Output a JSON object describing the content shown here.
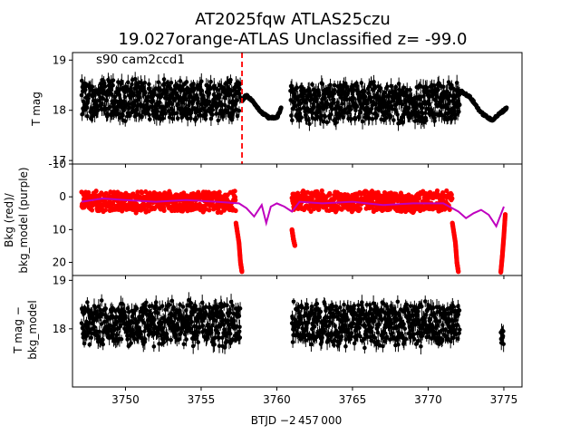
{
  "title_line1": "AT2025fqw  ATLAS25czu",
  "title_line2": "19.027orange-ATLAS Unclassified z= -99.0",
  "xlabel": "BTJD −2 457 000",
  "annotation": "s90 cam2ccd1",
  "chart_data": [
    {
      "type": "scatter",
      "ylabel": "T mag",
      "xlim": [
        3746.5,
        3776.2
      ],
      "ylim": [
        19.15,
        16.93
      ],
      "y_inverted": true,
      "yticks": [
        17,
        18,
        19
      ],
      "series_color": "#000000",
      "vline": {
        "x": 3757.7,
        "color": "#ff0000",
        "style": "dashed"
      },
      "segments": [
        {
          "x_start": 3747.1,
          "x_end": 3757.6,
          "y_center": 18.2,
          "y_spread": 0.45,
          "style": "noisy"
        },
        {
          "x": [
            3757.7,
            3758.0,
            3758.5,
            3759.0,
            3759.5,
            3760.0,
            3760.3
          ],
          "y": [
            18.2,
            18.3,
            18.15,
            17.95,
            17.85,
            17.85,
            18.05
          ],
          "style": "smooth"
        },
        {
          "x_start": 3760.9,
          "x_end": 3772.1,
          "y_center": 18.15,
          "y_spread": 0.45,
          "style": "noisy"
        },
        {
          "x": [
            3772.1,
            3772.8,
            3773.5,
            3774.2,
            3774.8,
            3775.2
          ],
          "y": [
            18.4,
            18.25,
            17.95,
            17.8,
            17.95,
            18.05
          ],
          "style": "smooth"
        }
      ]
    },
    {
      "type": "scatter",
      "ylabel_line1": "Bkg (red)/",
      "ylabel_line2": "bkg_model (purple)",
      "xlim": [
        3746.5,
        3776.2
      ],
      "ylim": [
        -10,
        24
      ],
      "yticks": [
        -10,
        0,
        10,
        20
      ],
      "bkg_color": "#ff0000",
      "model_color": "#bf00bf",
      "bkg_segments": [
        {
          "x_start": 3747.1,
          "x_end": 3757.3,
          "y_center": 1.5,
          "y_spread": 3.5
        },
        {
          "x": [
            3757.3,
            3757.5,
            3757.6,
            3757.7
          ],
          "y": [
            8,
            14,
            20,
            23
          ]
        },
        {
          "x_start": 3761.0,
          "x_end": 3771.6,
          "y_center": 1.5,
          "y_spread": 3.5
        },
        {
          "x": [
            3761.0,
            3761.1,
            3761.2
          ],
          "y": [
            10,
            13,
            15
          ]
        },
        {
          "x": [
            3771.6,
            3771.8,
            3771.9,
            3772.0
          ],
          "y": [
            8,
            14,
            20,
            23
          ]
        },
        {
          "x": [
            3774.8,
            3774.9,
            3775.0,
            3775.1
          ],
          "y": [
            23,
            18,
            12,
            5
          ]
        }
      ],
      "model_line": {
        "x": [
          3747.1,
          3748.5,
          3750,
          3752,
          3754,
          3756,
          3757.5,
          3758.0,
          3758.5,
          3759.0,
          3759.3,
          3759.6,
          3760.0,
          3760.5,
          3761.0,
          3761.5,
          3763,
          3765,
          3767,
          3769,
          3771,
          3772.0,
          3772.5,
          3773.0,
          3773.5,
          3774.0,
          3774.5,
          3775.0
        ],
        "y": [
          1.5,
          0.5,
          1.0,
          1.5,
          1.0,
          1.5,
          2.0,
          3.5,
          6.0,
          2.5,
          8.0,
          3.0,
          2.0,
          3.0,
          4.5,
          1.5,
          2.0,
          1.5,
          2.5,
          2.0,
          2.0,
          4.5,
          6.5,
          5.0,
          4.0,
          5.5,
          9.0,
          3.0
        ]
      }
    },
    {
      "type": "scatter",
      "ylabel_line1": "T mag −",
      "ylabel_line2": "bkg_model",
      "xlim": [
        3746.5,
        3776.2
      ],
      "ylim": [
        19.1,
        16.8
      ],
      "y_inverted": true,
      "yticks": [
        18,
        19
      ],
      "xticks": [
        3750,
        3755,
        3760,
        3765,
        3770,
        3775
      ],
      "series_color": "#000000",
      "segments": [
        {
          "x_start": 3747.1,
          "x_end": 3757.6,
          "y_center": 18.1,
          "y_spread": 0.5,
          "style": "noisy"
        },
        {
          "x_start": 3761.0,
          "x_end": 3772.1,
          "y_center": 18.1,
          "y_spread": 0.5,
          "style": "noisy"
        },
        {
          "x_start": 3774.8,
          "x_end": 3775.0,
          "y_center": 17.85,
          "y_spread": 0.25,
          "style": "noisy"
        }
      ]
    }
  ]
}
